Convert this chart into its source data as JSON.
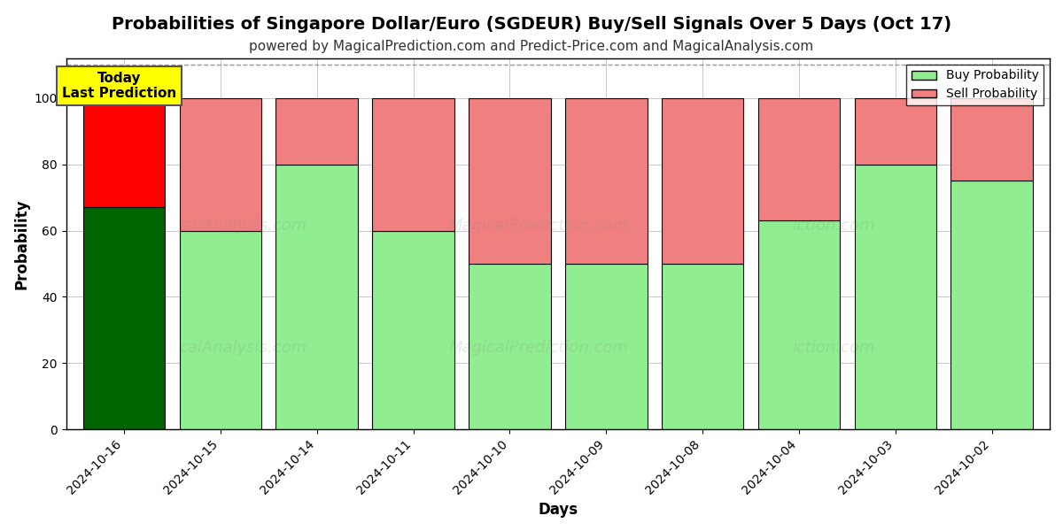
{
  "title": "Probabilities of Singapore Dollar/Euro (SGDEUR) Buy/Sell Signals Over 5 Days (Oct 17)",
  "subtitle": "powered by MagicalPrediction.com and Predict-Price.com and MagicalAnalysis.com",
  "xlabel": "Days",
  "ylabel": "Probability",
  "categories": [
    "2024-10-16",
    "2024-10-15",
    "2024-10-14",
    "2024-10-11",
    "2024-10-10",
    "2024-10-09",
    "2024-10-08",
    "2024-10-04",
    "2024-10-03",
    "2024-10-02"
  ],
  "buy_values": [
    67,
    60,
    80,
    60,
    50,
    50,
    50,
    63,
    80,
    75
  ],
  "sell_values": [
    33,
    40,
    20,
    40,
    50,
    50,
    50,
    37,
    20,
    25
  ],
  "buy_colors_first": "#006400",
  "sell_colors_first": "#ff0000",
  "buy_color_rest": "#90EE90",
  "sell_color_rest": "#F08080",
  "bar_edge_color": "#000000",
  "bar_width": 0.85,
  "ylim": [
    0,
    112
  ],
  "yticks": [
    0,
    20,
    40,
    60,
    80,
    100
  ],
  "dashed_line_y": 110,
  "legend_buy_label": "Buy Probability",
  "legend_sell_label": "Sell Probability",
  "annotation_text": "Today\nLast Prediction",
  "annotation_bg_color": "#ffff00",
  "title_fontsize": 14,
  "subtitle_fontsize": 11,
  "axis_label_fontsize": 12,
  "tick_fontsize": 10,
  "background_color": "#ffffff",
  "plot_bg_color": "#ffffff"
}
